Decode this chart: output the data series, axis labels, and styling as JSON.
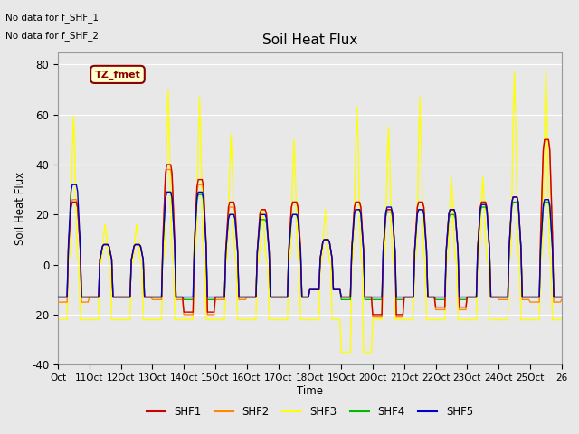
{
  "title": "Soil Heat Flux",
  "ylabel": "Soil Heat Flux",
  "xlabel": "Time",
  "ylim": [
    -40,
    85
  ],
  "xlim": [
    0,
    384
  ],
  "series_colors": {
    "SHF1": "#cc0000",
    "SHF2": "#ff8800",
    "SHF3": "#ffff00",
    "SHF4": "#00bb00",
    "SHF5": "#0000cc"
  },
  "legend_labels": [
    "SHF1",
    "SHF2",
    "SHF3",
    "SHF4",
    "SHF5"
  ],
  "no_data_text": [
    "No data for f_SHF_1",
    "No data for f_SHF_2"
  ],
  "tz_label": "TZ_fmet",
  "facecolor": "#e8e8e8",
  "fig_facecolor": "#e8e8e8",
  "xtick_labels": [
    "Oct",
    "11Oct",
    "12Oct",
    "13Oct",
    "14Oct",
    "15Oct",
    "16Oct",
    "17Oct",
    "18Oct",
    "19Oct",
    "20Oct",
    "21Oct",
    "22Oct",
    "23Oct",
    "24Oct",
    "25Oct",
    "26"
  ],
  "xtick_positions": [
    0,
    24,
    48,
    72,
    96,
    120,
    144,
    168,
    192,
    216,
    240,
    264,
    288,
    312,
    336,
    360,
    384
  ],
  "ytick_labels": [
    "-40",
    "-20",
    "0",
    "20",
    "40",
    "60",
    "80"
  ],
  "ytick_positions": [
    -40,
    -20,
    0,
    20,
    40,
    60,
    80
  ],
  "line_width": 1.0
}
